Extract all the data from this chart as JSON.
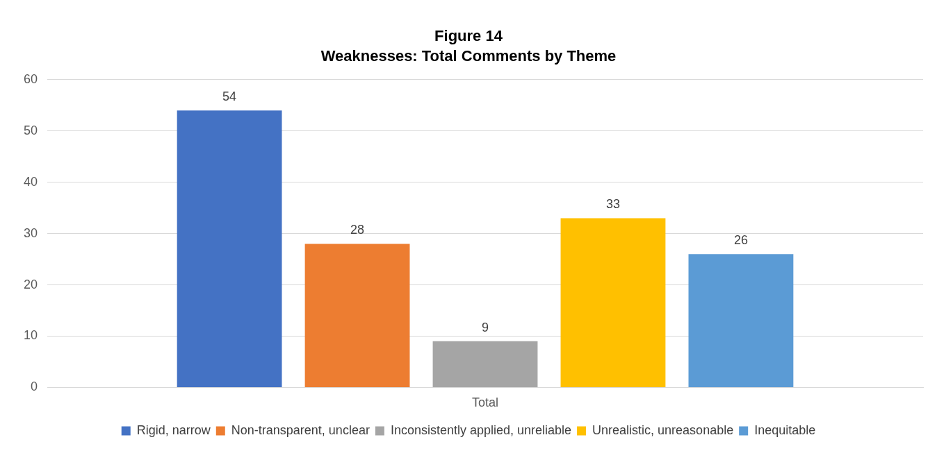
{
  "chart_data": {
    "type": "bar",
    "title": "Figure 14",
    "subtitle": "Weaknesses: Total Comments by Theme",
    "categories": [
      "Total"
    ],
    "series": [
      {
        "name": "Rigid, narrow",
        "color": "#4472c4",
        "values": [
          54
        ]
      },
      {
        "name": "Non-transparent, unclear",
        "color": "#ed7d31",
        "values": [
          28
        ]
      },
      {
        "name": "Inconsistently applied, unreliable",
        "color": "#a5a5a5",
        "values": [
          9
        ]
      },
      {
        "name": "Unrealistic, unreasonable",
        "color": "#ffc000",
        "values": [
          33
        ]
      },
      {
        "name": "Inequitable",
        "color": "#5b9bd5",
        "values": [
          26
        ]
      }
    ],
    "ylim": [
      0,
      60
    ],
    "yticks": [
      0,
      10,
      20,
      30,
      40,
      50,
      60
    ],
    "grid": "y",
    "legend": "bottom",
    "data_labels": true
  }
}
